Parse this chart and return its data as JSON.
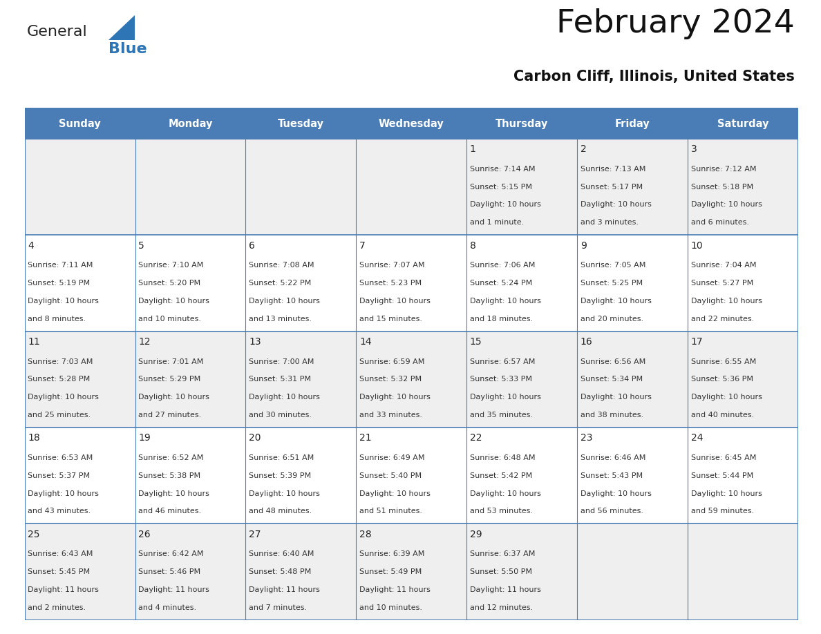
{
  "title": "February 2024",
  "subtitle": "Carbon Cliff, Illinois, United States",
  "header_bg_color": "#4A7DB5",
  "header_text_color": "#FFFFFF",
  "days_of_week": [
    "Sunday",
    "Monday",
    "Tuesday",
    "Wednesday",
    "Thursday",
    "Friday",
    "Saturday"
  ],
  "calendar_data": [
    [
      null,
      null,
      null,
      null,
      {
        "day": "1",
        "sunrise": "7:14 AM",
        "sunset": "5:15 PM",
        "daylight": "10 hours",
        "daylight2": "and 1 minute."
      },
      {
        "day": "2",
        "sunrise": "7:13 AM",
        "sunset": "5:17 PM",
        "daylight": "10 hours",
        "daylight2": "and 3 minutes."
      },
      {
        "day": "3",
        "sunrise": "7:12 AM",
        "sunset": "5:18 PM",
        "daylight": "10 hours",
        "daylight2": "and 6 minutes."
      }
    ],
    [
      {
        "day": "4",
        "sunrise": "7:11 AM",
        "sunset": "5:19 PM",
        "daylight": "10 hours",
        "daylight2": "and 8 minutes."
      },
      {
        "day": "5",
        "sunrise": "7:10 AM",
        "sunset": "5:20 PM",
        "daylight": "10 hours",
        "daylight2": "and 10 minutes."
      },
      {
        "day": "6",
        "sunrise": "7:08 AM",
        "sunset": "5:22 PM",
        "daylight": "10 hours",
        "daylight2": "and 13 minutes."
      },
      {
        "day": "7",
        "sunrise": "7:07 AM",
        "sunset": "5:23 PM",
        "daylight": "10 hours",
        "daylight2": "and 15 minutes."
      },
      {
        "day": "8",
        "sunrise": "7:06 AM",
        "sunset": "5:24 PM",
        "daylight": "10 hours",
        "daylight2": "and 18 minutes."
      },
      {
        "day": "9",
        "sunrise": "7:05 AM",
        "sunset": "5:25 PM",
        "daylight": "10 hours",
        "daylight2": "and 20 minutes."
      },
      {
        "day": "10",
        "sunrise": "7:04 AM",
        "sunset": "5:27 PM",
        "daylight": "10 hours",
        "daylight2": "and 22 minutes."
      }
    ],
    [
      {
        "day": "11",
        "sunrise": "7:03 AM",
        "sunset": "5:28 PM",
        "daylight": "10 hours",
        "daylight2": "and 25 minutes."
      },
      {
        "day": "12",
        "sunrise": "7:01 AM",
        "sunset": "5:29 PM",
        "daylight": "10 hours",
        "daylight2": "and 27 minutes."
      },
      {
        "day": "13",
        "sunrise": "7:00 AM",
        "sunset": "5:31 PM",
        "daylight": "10 hours",
        "daylight2": "and 30 minutes."
      },
      {
        "day": "14",
        "sunrise": "6:59 AM",
        "sunset": "5:32 PM",
        "daylight": "10 hours",
        "daylight2": "and 33 minutes."
      },
      {
        "day": "15",
        "sunrise": "6:57 AM",
        "sunset": "5:33 PM",
        "daylight": "10 hours",
        "daylight2": "and 35 minutes."
      },
      {
        "day": "16",
        "sunrise": "6:56 AM",
        "sunset": "5:34 PM",
        "daylight": "10 hours",
        "daylight2": "and 38 minutes."
      },
      {
        "day": "17",
        "sunrise": "6:55 AM",
        "sunset": "5:36 PM",
        "daylight": "10 hours",
        "daylight2": "and 40 minutes."
      }
    ],
    [
      {
        "day": "18",
        "sunrise": "6:53 AM",
        "sunset": "5:37 PM",
        "daylight": "10 hours",
        "daylight2": "and 43 minutes."
      },
      {
        "day": "19",
        "sunrise": "6:52 AM",
        "sunset": "5:38 PM",
        "daylight": "10 hours",
        "daylight2": "and 46 minutes."
      },
      {
        "day": "20",
        "sunrise": "6:51 AM",
        "sunset": "5:39 PM",
        "daylight": "10 hours",
        "daylight2": "and 48 minutes."
      },
      {
        "day": "21",
        "sunrise": "6:49 AM",
        "sunset": "5:40 PM",
        "daylight": "10 hours",
        "daylight2": "and 51 minutes."
      },
      {
        "day": "22",
        "sunrise": "6:48 AM",
        "sunset": "5:42 PM",
        "daylight": "10 hours",
        "daylight2": "and 53 minutes."
      },
      {
        "day": "23",
        "sunrise": "6:46 AM",
        "sunset": "5:43 PM",
        "daylight": "10 hours",
        "daylight2": "and 56 minutes."
      },
      {
        "day": "24",
        "sunrise": "6:45 AM",
        "sunset": "5:44 PM",
        "daylight": "10 hours",
        "daylight2": "and 59 minutes."
      }
    ],
    [
      {
        "day": "25",
        "sunrise": "6:43 AM",
        "sunset": "5:45 PM",
        "daylight": "11 hours",
        "daylight2": "and 2 minutes."
      },
      {
        "day": "26",
        "sunrise": "6:42 AM",
        "sunset": "5:46 PM",
        "daylight": "11 hours",
        "daylight2": "and 4 minutes."
      },
      {
        "day": "27",
        "sunrise": "6:40 AM",
        "sunset": "5:48 PM",
        "daylight": "11 hours",
        "daylight2": "and 7 minutes."
      },
      {
        "day": "28",
        "sunrise": "6:39 AM",
        "sunset": "5:49 PM",
        "daylight": "11 hours",
        "daylight2": "and 10 minutes."
      },
      {
        "day": "29",
        "sunrise": "6:37 AM",
        "sunset": "5:50 PM",
        "daylight": "11 hours",
        "daylight2": "and 12 minutes."
      },
      null,
      null
    ]
  ],
  "logo_color_general": "#222222",
  "logo_color_blue": "#2E75B6",
  "border_color": "#4A7DB5",
  "line_color": "#4A7DB5",
  "cell_bg_even": "#EFEFEF",
  "cell_bg_odd": "#FFFFFF"
}
